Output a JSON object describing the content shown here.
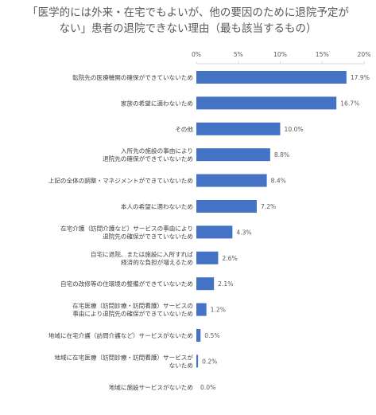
{
  "chart_data": {
    "type": "bar",
    "orientation": "horizontal",
    "title_lines": [
      "「医学的には外来・在宅でもよいが、他の要因のために退院予定が",
      "ない」患者の退院できない理由（最も該当するもの）"
    ],
    "categories": [
      [
        "転院先の医療機関の確保ができていないため"
      ],
      [
        "家族の希望に適わないため"
      ],
      [
        "その他"
      ],
      [
        "入所先の施設の事由により",
        "退院先の確保ができていないため"
      ],
      [
        "上記の全体の調整・マネジメントができていないため"
      ],
      [
        "本人の希望に適わないため"
      ],
      [
        "在宅介護（訪問介護など）サービスの事由により",
        "退院先の確保ができていないため"
      ],
      [
        "自宅に退院、または施設に入所すれば",
        "経済的な負担が増えるため"
      ],
      [
        "自宅の改修等の住環境の整備ができていないため"
      ],
      [
        "在宅医療（訪問診療・訪問看護）サービスの",
        "事由により退院先の確保ができていないため"
      ],
      [
        "地域に在宅介護（訪問介護など）サービスがないため"
      ],
      [
        "地域に在宅医療（訪問診療・訪問看護）サービスが",
        "ないため"
      ],
      [
        "地域に施設サービスがないため"
      ]
    ],
    "values": [
      17.9,
      16.7,
      10.0,
      8.8,
      8.4,
      7.2,
      4.3,
      2.6,
      2.1,
      1.2,
      0.5,
      0.2,
      0.0
    ],
    "value_labels": [
      "17.9%",
      "16.7%",
      "10.0%",
      "8.8%",
      "8.4%",
      "7.2%",
      "4.3%",
      "2.6%",
      "2.1%",
      "1.2%",
      "0.5%",
      "0.2%",
      "0.0%"
    ],
    "xlim": [
      0,
      20
    ],
    "xticks": [
      0,
      5,
      10,
      15,
      20
    ],
    "xtick_labels": [
      "0%",
      "5%",
      "10%",
      "15%",
      "20%"
    ],
    "xaxis_position": "top",
    "grid": false,
    "legend": "none",
    "colors": {
      "bar": "#4472c4",
      "text": "#595959",
      "axis": "#d9d9d9"
    }
  }
}
